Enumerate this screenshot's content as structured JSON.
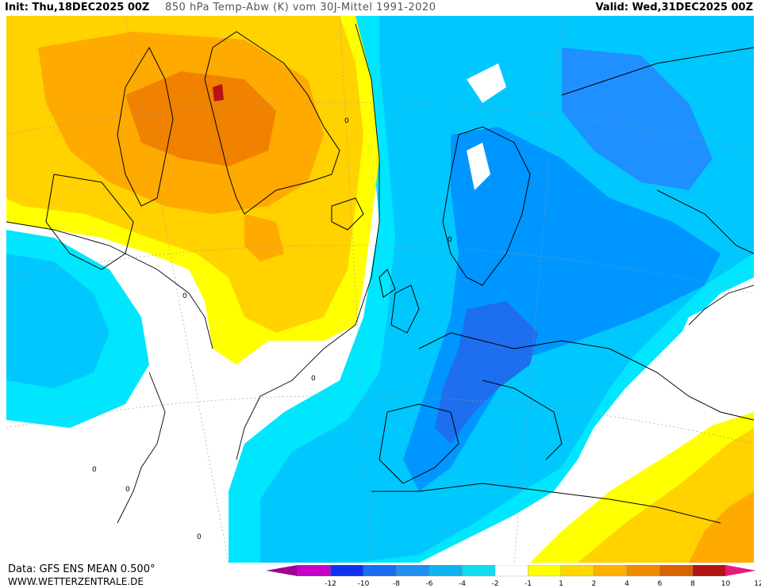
{
  "header": {
    "init_label": "Init:",
    "init_value": "Thu,18DEC2025 00Z",
    "title": "850 hPa Temp-Abw (K) vom 30J-Mittel 1991-2020",
    "valid_label": "Valid:",
    "valid_value": "Wed,31DEC2025 00Z"
  },
  "footer": {
    "data_source": "Data: GFS ENS MEAN 0.500°",
    "website": "WWW.WETTERZENTRALE.DE"
  },
  "legend": {
    "ticks": [
      "-12",
      "-10",
      "-8",
      "-6",
      "-4",
      "-2",
      "-1",
      "1",
      "2",
      "4",
      "6",
      "8",
      "10",
      "12"
    ],
    "colors": [
      "#a00090",
      "#c800c8",
      "#1030f0",
      "#1a6cf0",
      "#1e90f0",
      "#10b4f0",
      "#10dcf0",
      "#ffffff",
      "#ffff00",
      "#ffd700",
      "#ffb000",
      "#f08c00",
      "#d86400",
      "#b41414",
      "#e01e78"
    ]
  },
  "map": {
    "contour_labels": [
      "0",
      "0",
      "0",
      "0",
      "0",
      "0",
      "0"
    ],
    "colors": {
      "ocean_white": "#ffffff",
      "light_blue": "#00e6ff",
      "sky_blue": "#00c8ff",
      "mid_blue": "#0096ff",
      "deep_blue": "#005aff",
      "yellow": "#ffff00",
      "gold": "#ffd200",
      "orange": "#ffaa00",
      "dark_orange": "#f08200",
      "burnt": "#d25a00",
      "red": "#b41414"
    }
  }
}
